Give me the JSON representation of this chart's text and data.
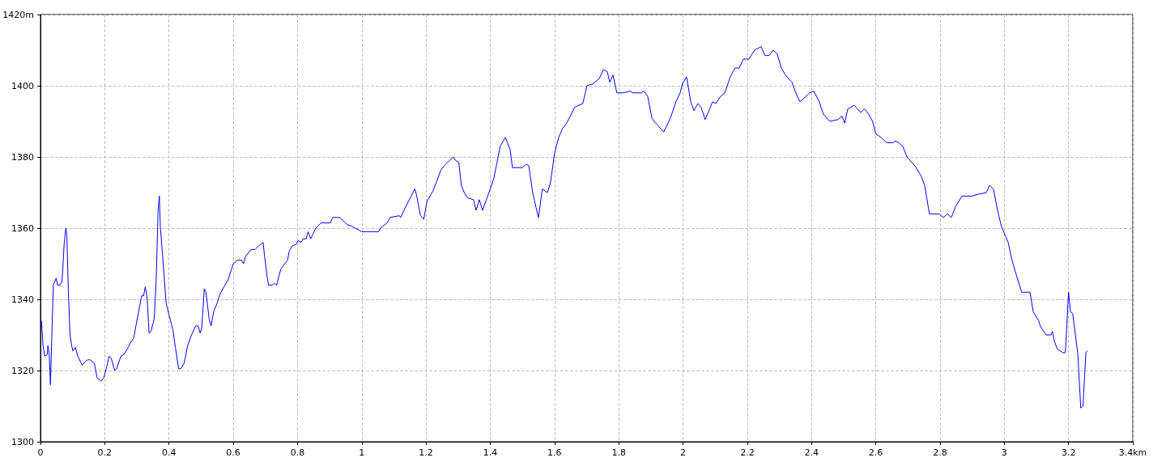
{
  "chart_data": {
    "type": "line",
    "color": "#0000ff",
    "marker": "none",
    "line_style": "solid",
    "grid": true,
    "xlim": [
      0,
      3.4
    ],
    "xticks": [
      0,
      0.2,
      0.4,
      0.6,
      0.8,
      1,
      1.2,
      1.4,
      1.6,
      1.8,
      2,
      2.2,
      2.4,
      2.6,
      2.8,
      3,
      3.2,
      {
        "value": 3.4,
        "label": "3.4km"
      }
    ],
    "ylim": [
      1300,
      1420
    ],
    "yticks": [
      1300,
      1320,
      1340,
      1360,
      1380,
      1400,
      {
        "value": 1420,
        "label": "1420m"
      }
    ],
    "x": [
      0,
      0.003,
      0.008,
      0.013,
      0.021,
      0.023,
      0.027,
      0.031,
      0.035,
      0.04,
      0.049,
      0.053,
      0.061,
      0.067,
      0.074,
      0.079,
      0.082,
      0.087,
      0.092,
      0.097,
      0.101,
      0.109,
      0.116,
      0.13,
      0.139,
      0.147,
      0.155,
      0.168,
      0.176,
      0.189,
      0.197,
      0.206,
      0.214,
      0.22,
      0.231,
      0.237,
      0.25,
      0.26,
      0.273,
      0.281,
      0.29,
      0.298,
      0.315,
      0.321,
      0.326,
      0.332,
      0.338,
      0.344,
      0.354,
      0.36,
      0.366,
      0.37,
      0.373,
      0.382,
      0.391,
      0.402,
      0.412,
      0.42,
      0.43,
      0.437,
      0.447,
      0.458,
      0.47,
      0.483,
      0.491,
      0.497,
      0.502,
      0.51,
      0.515,
      0.525,
      0.531,
      0.539,
      0.55,
      0.559,
      0.571,
      0.584,
      0.6,
      0.613,
      0.626,
      0.632,
      0.638,
      0.655,
      0.668,
      0.679,
      0.693,
      0.697,
      0.706,
      0.71,
      0.721,
      0.727,
      0.735,
      0.748,
      0.769,
      0.774,
      0.784,
      0.796,
      0.802,
      0.811,
      0.817,
      0.827,
      0.833,
      0.841,
      0.857,
      0.874,
      0.903,
      0.909,
      0.931,
      0.943,
      0.955,
      0.97,
      1.0,
      1.052,
      1.058,
      1.079,
      1.088,
      1.117,
      1.121,
      1.134,
      1.165,
      1.17,
      1.183,
      1.193,
      1.203,
      1.222,
      1.247,
      1.262,
      1.273,
      1.285,
      1.292,
      1.302,
      1.31,
      1.319,
      1.33,
      1.348,
      1.356,
      1.366,
      1.376,
      1.394,
      1.411,
      1.431,
      1.447,
      1.462,
      1.469,
      1.5,
      1.512,
      1.52,
      1.532,
      1.542,
      1.55,
      1.562,
      1.578,
      1.588,
      1.6,
      1.613,
      1.625,
      1.638,
      1.663,
      1.688,
      1.701,
      1.719,
      1.739,
      1.752,
      1.764,
      1.772,
      1.782,
      1.794,
      1.815,
      1.835,
      1.845,
      1.87,
      1.878,
      1.89,
      1.903,
      1.91,
      1.92,
      1.94,
      1.961,
      1.978,
      1.991,
      1.998,
      2.011,
      2.024,
      2.034,
      2.046,
      2.056,
      2.069,
      2.092,
      2.102,
      2.117,
      2.13,
      2.147,
      2.162,
      2.175,
      2.188,
      2.205,
      2.223,
      2.243,
      2.255,
      2.268,
      2.281,
      2.293,
      2.306,
      2.319,
      2.339,
      2.351,
      2.364,
      2.382,
      2.394,
      2.407,
      2.424,
      2.437,
      2.457,
      2.482,
      2.495,
      2.503,
      2.513,
      2.533,
      2.553,
      2.565,
      2.578,
      2.59,
      2.6,
      2.616,
      2.634,
      2.654,
      2.661,
      2.671,
      2.684,
      2.697,
      2.722,
      2.742,
      2.752,
      2.767,
      2.797,
      2.81,
      2.823,
      2.835,
      2.848,
      2.868,
      2.898,
      2.918,
      2.944,
      2.954,
      2.966,
      2.979,
      2.991,
      3.012,
      3.024,
      3.037,
      3.054,
      3.08,
      3.09,
      3.107,
      3.112,
      3.13,
      3.145,
      3.15,
      3.155,
      3.165,
      3.183,
      3.19,
      3.2,
      3.206,
      3.213,
      3.229,
      3.238,
      3.245,
      3.25,
      3.254,
      3.258
    ],
    "values": [
      1334,
      1334,
      1327,
      1324,
      1324.5,
      1327,
      1325,
      1316,
      1329,
      1344,
      1346,
      1344,
      1344,
      1345,
      1356,
      1360,
      1358,
      1341.5,
      1330,
      1327,
      1325.5,
      1326.5,
      1324,
      1321.5,
      1322.5,
      1323,
      1323,
      1322,
      1318,
      1317,
      1318,
      1321,
      1324,
      1323.5,
      1320,
      1320.5,
      1324,
      1324.5,
      1326.5,
      1328,
      1329,
      1333,
      1341,
      1341,
      1343.5,
      1340.5,
      1330.5,
      1331,
      1334.5,
      1345,
      1365,
      1369,
      1360.5,
      1350,
      1339,
      1335,
      1331.5,
      1326.5,
      1320.5,
      1320.5,
      1322,
      1327,
      1330,
      1332.5,
      1332.5,
      1330.5,
      1332,
      1343,
      1342,
      1334.5,
      1332.5,
      1336.5,
      1339,
      1341.5,
      1343.5,
      1345.5,
      1350,
      1351,
      1351,
      1350,
      1352,
      1354,
      1354,
      1355,
      1356,
      1352.5,
      1346,
      1344,
      1344,
      1344.5,
      1344,
      1348.5,
      1351,
      1353.5,
      1355,
      1355.5,
      1356.5,
      1356,
      1357,
      1357,
      1359,
      1357,
      1360,
      1361.5,
      1361.5,
      1363,
      1363,
      1362,
      1361,
      1360.5,
      1359,
      1359,
      1360,
      1361.5,
      1363,
      1363.5,
      1363,
      1365.5,
      1371,
      1369.5,
      1363.5,
      1362.5,
      1367.5,
      1370.5,
      1376.5,
      1378,
      1379,
      1380,
      1379,
      1378.5,
      1372,
      1370,
      1368.5,
      1368,
      1365,
      1368,
      1365,
      1369.5,
      1374,
      1383,
      1385.5,
      1382,
      1377,
      1377,
      1378,
      1377.5,
      1370,
      1366,
      1363,
      1371,
      1370,
      1373,
      1381,
      1385.5,
      1388,
      1389.5,
      1394,
      1395,
      1400,
      1400.5,
      1402,
      1404.5,
      1404,
      1401,
      1403,
      1398,
      1398,
      1398.5,
      1398,
      1398,
      1398.5,
      1397,
      1391,
      1390,
      1389,
      1387,
      1391,
      1395.5,
      1398,
      1400.5,
      1402.5,
      1395.5,
      1393,
      1395,
      1394,
      1390.5,
      1395.5,
      1395,
      1397,
      1398,
      1402.5,
      1405,
      1405,
      1407.5,
      1407.5,
      1410,
      1411,
      1408.5,
      1408.5,
      1410,
      1409,
      1405,
      1403,
      1401,
      1398,
      1395.5,
      1397,
      1398,
      1398.5,
      1395.5,
      1392,
      1390,
      1390.5,
      1391.5,
      1389.5,
      1393.5,
      1394.5,
      1392.5,
      1393.5,
      1392,
      1390,
      1386.5,
      1385.5,
      1384,
      1384,
      1384.5,
      1384,
      1383,
      1380,
      1377.5,
      1374.5,
      1372,
      1364,
      1364,
      1363,
      1364,
      1363,
      1366,
      1369,
      1369,
      1369.5,
      1370,
      1372,
      1371,
      1365,
      1360.5,
      1356,
      1351,
      1347,
      1342,
      1342,
      1336.5,
      1334,
      1332.5,
      1330,
      1330,
      1331,
      1328.5,
      1326,
      1325,
      1325,
      1342,
      1336.5,
      1336,
      1324.5,
      1309.5,
      1310,
      1318.5,
      1325,
      1325.5
    ]
  }
}
